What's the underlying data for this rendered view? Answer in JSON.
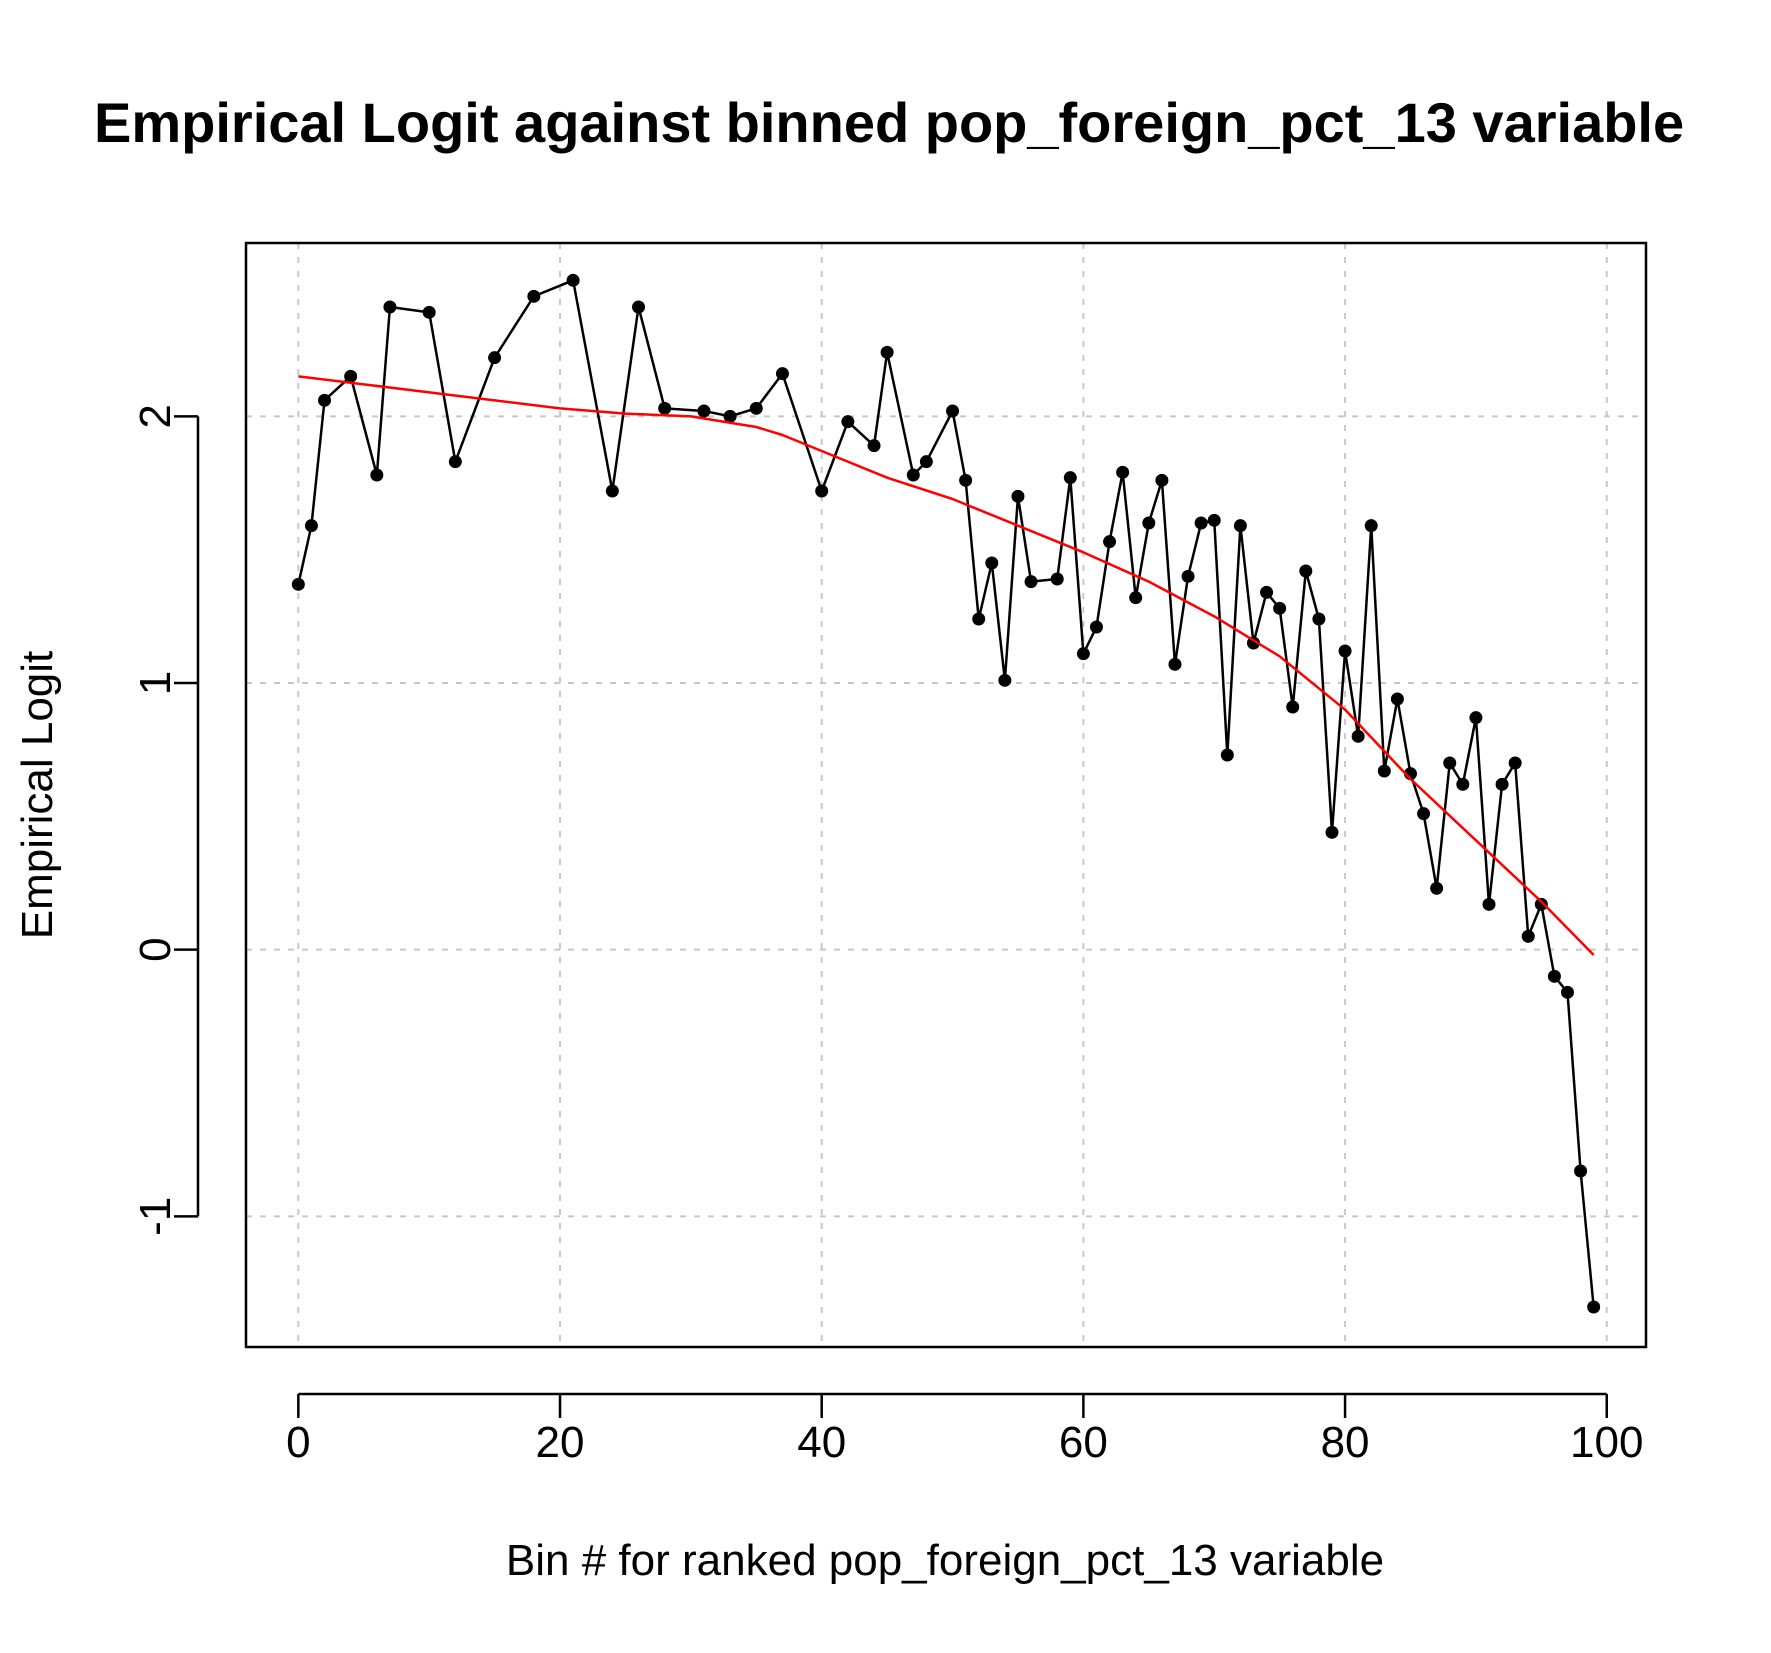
{
  "chart_data": {
    "type": "line",
    "title": "Empirical Logit against binned pop_foreign_pct_13 variable",
    "xlabel": "Bin # for ranked pop_foreign_pct_13 variable",
    "ylabel": "Empirical Logit",
    "xlim": [
      -4,
      103
    ],
    "ylim": [
      -1.49,
      2.65
    ],
    "x_ticks": [
      0,
      20,
      40,
      60,
      80,
      100
    ],
    "y_ticks": [
      -1,
      0,
      1,
      2
    ],
    "x_tick_labels": [
      "0",
      "20",
      "40",
      "60",
      "80",
      "100"
    ],
    "y_tick_labels": [
      "-1",
      "0",
      "1",
      "2"
    ],
    "grid": true,
    "series": [
      {
        "color": "#000000",
        "style": "line-with-points",
        "x": [
          0,
          1,
          2,
          4,
          6,
          7,
          10,
          12,
          15,
          18,
          21,
          24,
          26,
          28,
          31,
          33,
          35,
          37,
          40,
          42,
          44,
          45,
          47,
          48,
          50,
          51,
          52,
          53,
          54,
          55,
          56,
          58,
          59,
          60,
          61,
          62,
          63,
          64,
          65,
          66,
          67,
          68,
          69,
          70,
          71,
          72,
          73,
          74,
          75,
          76,
          77,
          78,
          79,
          80,
          81,
          82,
          83,
          84,
          85,
          86,
          87,
          88,
          89,
          90,
          91,
          92,
          93,
          94,
          95,
          96,
          97,
          98,
          99
        ],
        "y": [
          1.37,
          1.59,
          2.06,
          2.15,
          1.78,
          2.41,
          2.39,
          1.83,
          2.22,
          2.45,
          2.51,
          1.72,
          2.41,
          2.03,
          2.02,
          2.0,
          2.03,
          2.16,
          1.72,
          1.98,
          1.89,
          2.24,
          1.78,
          1.83,
          2.02,
          1.76,
          1.24,
          1.45,
          1.01,
          1.7,
          1.38,
          1.39,
          1.77,
          1.11,
          1.21,
          1.53,
          1.79,
          1.32,
          1.6,
          1.76,
          1.07,
          1.4,
          1.6,
          1.61,
          0.73,
          1.59,
          1.15,
          1.34,
          1.28,
          0.91,
          1.42,
          1.24,
          0.44,
          1.12,
          0.8,
          1.59,
          0.67,
          0.94,
          0.66,
          0.51,
          0.23,
          0.7,
          0.62,
          0.87,
          0.17,
          0.62,
          0.7,
          0.05,
          0.17,
          -0.1,
          -0.16,
          -0.83,
          -1.34
        ]
      },
      {
        "color": "#ff0000",
        "style": "smooth-line",
        "x": [
          0,
          5,
          10,
          15,
          20,
          25,
          30,
          35,
          37,
          40,
          45,
          50,
          55,
          60,
          65,
          70,
          75,
          80,
          85,
          90,
          95,
          99
        ],
        "y": [
          2.15,
          2.12,
          2.09,
          2.06,
          2.03,
          2.01,
          2.0,
          1.96,
          1.93,
          1.87,
          1.77,
          1.69,
          1.59,
          1.49,
          1.38,
          1.25,
          1.1,
          0.9,
          0.64,
          0.41,
          0.18,
          -0.02
        ]
      }
    ]
  }
}
